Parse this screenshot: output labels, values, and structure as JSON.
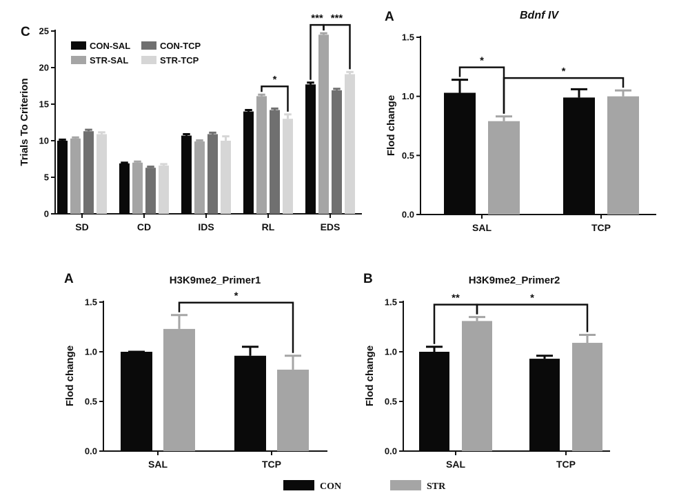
{
  "colors": {
    "con_sal": "#0a0a0a",
    "con_tcp": "#707070",
    "str_sal": "#a5a5a5",
    "str_tcp": "#d6d6d6",
    "con": "#0a0a0a",
    "str": "#a5a5a5"
  },
  "chart_data": [
    {
      "id": "C",
      "type": "bar",
      "panel_letter": "C",
      "title": "",
      "xlabel": "",
      "ylabel": "Trials To Criterion",
      "ylim": [
        0,
        25
      ],
      "yticks": [
        "0",
        "5",
        "10",
        "15",
        "20",
        "25"
      ],
      "categories": [
        "SD",
        "CD",
        "IDS",
        "RL",
        "EDS"
      ],
      "legend_placement": "top-left",
      "series": [
        {
          "name": "CON-SAL",
          "color_key": "con_sal",
          "values": [
            10.0,
            6.9,
            10.7,
            14.0,
            17.7
          ],
          "errors": [
            0.15,
            0.1,
            0.2,
            0.2,
            0.25
          ]
        },
        {
          "name": "STR-SAL",
          "color_key": "str_sal",
          "values": [
            10.3,
            7.0,
            9.9,
            16.1,
            24.5
          ],
          "errors": [
            0.15,
            0.15,
            0.15,
            0.2,
            0.2
          ]
        },
        {
          "name": "CON-TCP",
          "color_key": "con_tcp",
          "values": [
            11.3,
            6.3,
            10.9,
            14.2,
            16.9
          ],
          "errors": [
            0.2,
            0.15,
            0.2,
            0.2,
            0.2
          ]
        },
        {
          "name": "STR-TCP",
          "color_key": "str_tcp",
          "values": [
            10.9,
            6.6,
            10.0,
            13.0,
            19.1
          ],
          "errors": [
            0.25,
            0.2,
            0.6,
            0.6,
            0.3
          ]
        }
      ],
      "legend_order": [
        "CON-SAL",
        "CON-TCP",
        "STR-SAL",
        "STR-TCP"
      ],
      "significance": [
        {
          "category": "RL",
          "from_series": 1,
          "to_series": 3,
          "label": "*"
        },
        {
          "category": "EDS",
          "from_series": 0,
          "to_series": 1,
          "label": "***"
        },
        {
          "category": "EDS",
          "from_series": 1,
          "to_series": 3,
          "label": "***"
        }
      ]
    },
    {
      "id": "A_top",
      "type": "bar",
      "panel_letter": "A",
      "title": "Bdnf IV",
      "xlabel": "",
      "ylabel": "Flod change",
      "ylim": [
        0,
        1.5
      ],
      "yticks": [
        "0.0",
        "0.5",
        "1.0",
        "1.5"
      ],
      "categories": [
        "SAL",
        "TCP"
      ],
      "series": [
        {
          "name": "CON",
          "color_key": "con",
          "values": [
            1.03,
            0.99
          ],
          "errors": [
            0.11,
            0.07
          ]
        },
        {
          "name": "STR",
          "color_key": "str",
          "values": [
            0.79,
            1.0
          ],
          "errors": [
            0.04,
            0.05
          ]
        }
      ],
      "significance": [
        {
          "from": [
            0,
            0
          ],
          "to": [
            0,
            1
          ],
          "label": "*"
        },
        {
          "from": [
            0,
            1
          ],
          "to": [
            1,
            1
          ],
          "label": "*"
        }
      ]
    },
    {
      "id": "A_bottom",
      "type": "bar",
      "panel_letter": "A",
      "title": "H3K9me2_Primer1",
      "xlabel": "",
      "ylabel": "Flod change",
      "ylim": [
        0,
        1.5
      ],
      "yticks": [
        "0.0",
        "0.5",
        "1.0",
        "1.5"
      ],
      "categories": [
        "SAL",
        "TCP"
      ],
      "series": [
        {
          "name": "CON",
          "color_key": "con",
          "values": [
            1.0,
            0.96
          ],
          "errors": [
            0.0,
            0.09
          ]
        },
        {
          "name": "STR",
          "color_key": "str",
          "values": [
            1.23,
            0.82
          ],
          "errors": [
            0.14,
            0.14
          ]
        }
      ],
      "significance": [
        {
          "from": [
            0,
            1
          ],
          "to": [
            1,
            1
          ],
          "label": "*"
        }
      ]
    },
    {
      "id": "B_bottom",
      "type": "bar",
      "panel_letter": "B",
      "title": "H3K9me2_Primer2",
      "xlabel": "",
      "ylabel": "Flod change",
      "ylim": [
        0,
        1.5
      ],
      "yticks": [
        "0.0",
        "0.5",
        "1.0",
        "1.5"
      ],
      "categories": [
        "SAL",
        "TCP"
      ],
      "series": [
        {
          "name": "CON",
          "color_key": "con",
          "values": [
            1.0,
            0.93
          ],
          "errors": [
            0.05,
            0.03
          ]
        },
        {
          "name": "STR",
          "color_key": "str",
          "values": [
            1.31,
            1.09
          ],
          "errors": [
            0.04,
            0.08
          ]
        }
      ],
      "significance": [
        {
          "from": [
            0,
            0
          ],
          "to": [
            0,
            1
          ],
          "label": "**"
        },
        {
          "from": [
            0,
            1
          ],
          "to": [
            1,
            1
          ],
          "label": "*"
        }
      ]
    }
  ],
  "bottom_legend": [
    {
      "label": "CON",
      "color_key": "con"
    },
    {
      "label": "STR",
      "color_key": "str"
    }
  ]
}
